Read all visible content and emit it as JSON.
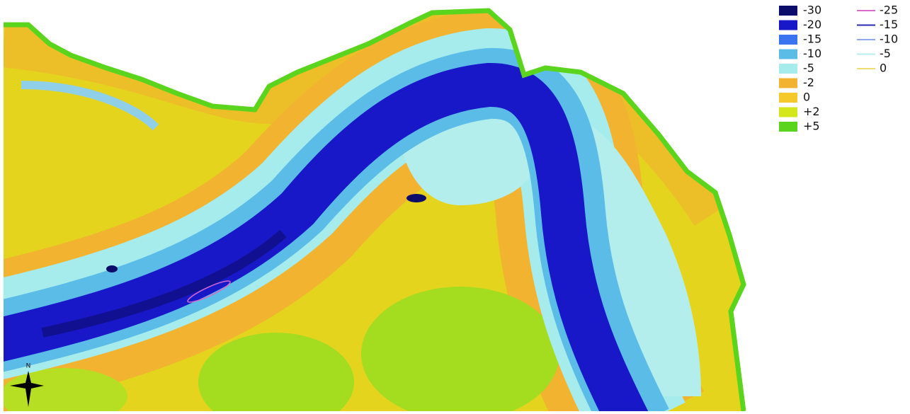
{
  "legend": {
    "fills": [
      {
        "label": "-30",
        "color": "#0c0c6a"
      },
      {
        "label": "-20",
        "color": "#1818c8"
      },
      {
        "label": "-15",
        "color": "#3a74f0"
      },
      {
        "label": "-10",
        "color": "#5cbce8"
      },
      {
        "label": "-5",
        "color": "#a6ecec"
      },
      {
        "label": "-2",
        "color": "#f2b330"
      },
      {
        "label": "0",
        "color": "#f5c82b"
      },
      {
        "label": "+2",
        "color": "#d4e61c"
      },
      {
        "label": "+5",
        "color": "#5ad41c"
      }
    ],
    "contours": [
      {
        "label": "-25",
        "color": "#d86ac8"
      },
      {
        "label": "-15",
        "color": "#2a2ab0"
      },
      {
        "label": "-10",
        "color": "#8fa8ee"
      },
      {
        "label": "-5",
        "color": "#b8eef0"
      },
      {
        "label": "0",
        "color": "#f0dc70"
      }
    ]
  },
  "north_label": "N"
}
